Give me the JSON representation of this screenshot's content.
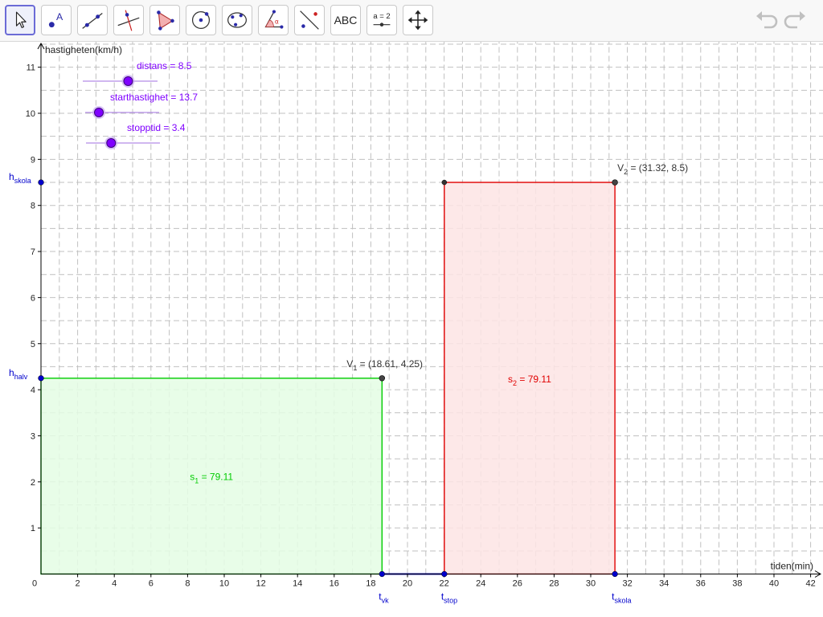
{
  "toolbar": {
    "tools": [
      {
        "name": "move-tool",
        "icon": "cursor-arrow-icon",
        "selected": true
      },
      {
        "name": "point-tool",
        "icon": "point-icon",
        "selected": false
      },
      {
        "name": "line-tool",
        "icon": "line-icon",
        "selected": false
      },
      {
        "name": "perpendicular-line-tool",
        "icon": "perpendicular-line-icon",
        "selected": false
      },
      {
        "name": "polygon-tool",
        "icon": "polygon-icon",
        "selected": false
      },
      {
        "name": "circle-tool",
        "icon": "circle-icon",
        "selected": false
      },
      {
        "name": "conic-tool",
        "icon": "conic-icon",
        "selected": false
      },
      {
        "name": "angle-tool",
        "icon": "angle-icon",
        "selected": false
      },
      {
        "name": "reflect-tool",
        "icon": "reflect-icon",
        "selected": false
      },
      {
        "name": "text-tool",
        "icon": "text-icon",
        "label": "ABC",
        "selected": false
      },
      {
        "name": "slider-tool",
        "icon": "slider-icon",
        "label": "a = 2",
        "selected": false
      },
      {
        "name": "move-graphics-tool",
        "icon": "move-graphics-icon",
        "selected": false
      }
    ],
    "undo_icon": "undo-icon",
    "redo_icon": "redo-icon"
  },
  "graphics": {
    "x_axis_label": "tiden(min)",
    "y_axis_label": "hastigheten(km/h)",
    "sliders": [
      {
        "name": "distans",
        "label": "distans = 8.5",
        "value": 8.5,
        "min": 0,
        "max": 14
      },
      {
        "name": "starthastighet",
        "label": "starthastighet = 13.7",
        "value": 13.7,
        "min": 10,
        "max": 30
      },
      {
        "name": "stopptid",
        "label": "stopptid = 3.4",
        "value": 3.4,
        "min": 0,
        "max": 10
      }
    ],
    "areas": [
      {
        "name": "s1",
        "label": "s",
        "sub": "1",
        "suffix": " = 79.11",
        "x": [
          0,
          18.61
        ],
        "y": 4.25,
        "color": "#00cc00",
        "fill": "#e4fde4"
      },
      {
        "name": "s2",
        "label": "s",
        "sub": "2",
        "suffix": " = 79.11",
        "x": [
          22.01,
          31.32
        ],
        "y": 8.5,
        "color": "#e00000",
        "fill": "#fde4e4"
      }
    ],
    "points": [
      {
        "name": "v1",
        "label": "V",
        "sub": "1",
        "suffix": " = (18.61, 4.25)",
        "x": 18.61,
        "y": 4.25
      },
      {
        "name": "v2",
        "label": "V",
        "sub": "2",
        "suffix": " = (31.32, 8.5)",
        "x": 31.32,
        "y": 8.5
      }
    ],
    "axis_points": [
      {
        "name": "t-vk",
        "label": "t",
        "sub": "vk",
        "axis": "x",
        "value": 18.61
      },
      {
        "name": "t-stop",
        "label": "t",
        "sub": "stop",
        "axis": "x",
        "value": 22.01
      },
      {
        "name": "t-skola",
        "label": "t",
        "sub": "skola",
        "axis": "x",
        "value": 31.32
      },
      {
        "name": "h-skola",
        "label": "h",
        "sub": "skola",
        "axis": "y",
        "value": 8.5
      },
      {
        "name": "h-halv",
        "label": "h",
        "sub": "halv",
        "axis": "y",
        "value": 4.25
      }
    ],
    "stop_segment": {
      "x": [
        18.61,
        22.01
      ],
      "y": 0,
      "color": "#0000cc"
    },
    "colors": {
      "slider": "#7f00ff",
      "axis_point": "#0000cc",
      "grid": "#c0c0c0",
      "axis": "#000000"
    }
  },
  "chart_data": {
    "type": "area",
    "xlabel": "tiden(min)",
    "ylabel": "hastigheten(km/h)",
    "xlim": [
      0,
      42
    ],
    "ylim": [
      0,
      11
    ],
    "x_ticks": [
      0,
      2,
      4,
      6,
      8,
      10,
      12,
      14,
      16,
      18,
      20,
      22,
      24,
      26,
      28,
      30,
      32,
      34,
      36,
      38,
      40,
      42
    ],
    "y_ticks": [
      1,
      2,
      3,
      4,
      5,
      6,
      7,
      8,
      9,
      10,
      11
    ],
    "grid": true,
    "series": [
      {
        "name": "s1 = 79.11",
        "x": [
          0,
          18.61
        ],
        "y": [
          4.25,
          4.25
        ]
      },
      {
        "name": "s2 = 79.11",
        "x": [
          22.01,
          31.32
        ],
        "y": [
          8.5,
          8.5
        ]
      }
    ]
  }
}
